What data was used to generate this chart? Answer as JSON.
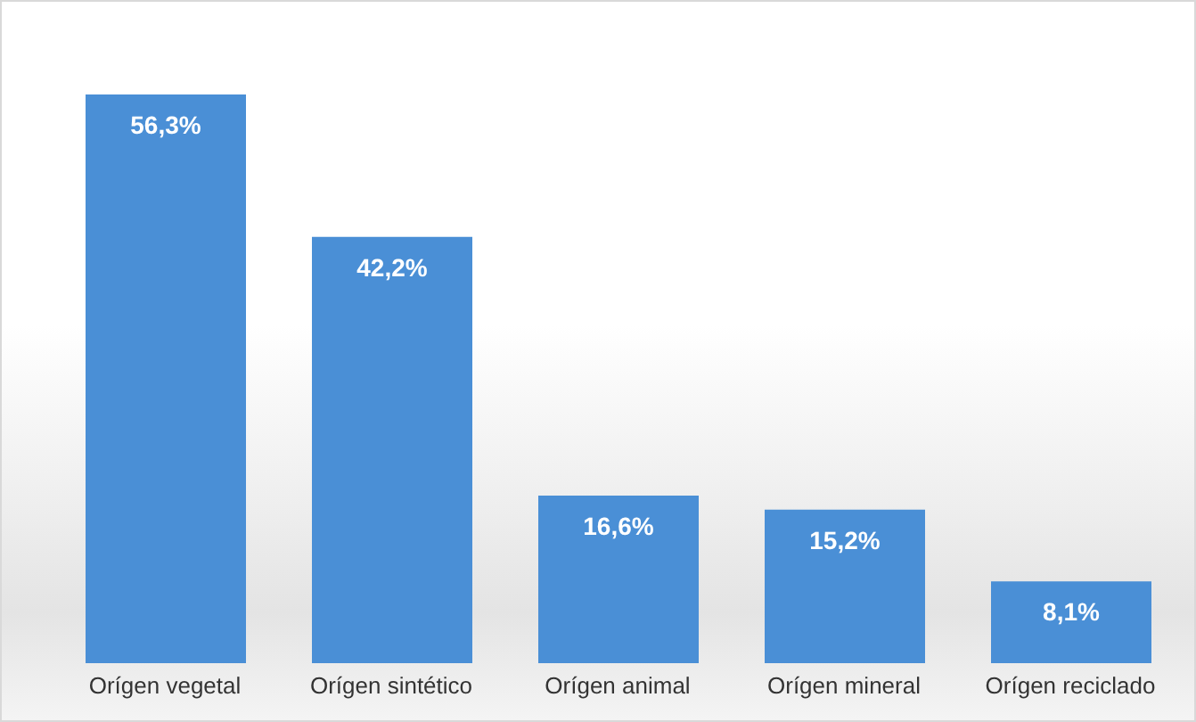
{
  "chart_data": {
    "type": "bar",
    "categories": [
      "Orígen vegetal",
      "Orígen sintético",
      "Orígen animal",
      "Orígen mineral",
      "Orígen reciclado"
    ],
    "values": [
      56.3,
      42.2,
      16.6,
      15.2,
      8.1
    ],
    "value_labels": [
      "56,3%",
      "42,2%",
      "16,6%",
      "15,2%",
      "8,1%"
    ],
    "color": "#4a8fd6",
    "grid": false,
    "legend": false
  }
}
